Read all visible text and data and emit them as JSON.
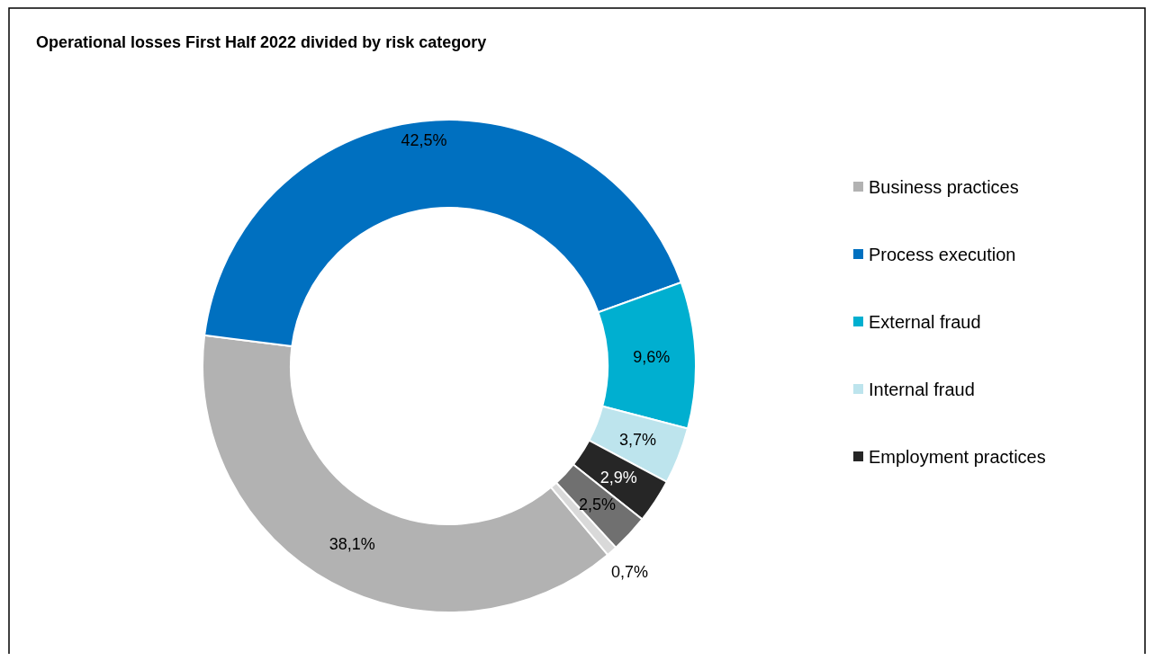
{
  "chart_data": {
    "type": "donut",
    "title": "Operational losses First Half 2022 divided by risk category",
    "categories": [
      "Business practices",
      "Process execution",
      "External fraud",
      "Internal fraud",
      "Employment practices",
      null,
      null
    ],
    "values": [
      38.1,
      42.5,
      9.6,
      3.7,
      2.9,
      2.5,
      0.7
    ],
    "colors": [
      "#b2b2b2",
      "#0070c0",
      "#00afd0",
      "#bde4ed",
      "#262626",
      "#707070",
      "#d9d9d9"
    ],
    "value_labels": [
      "38,1%",
      "42,5%",
      "9,6%",
      "3,7%",
      "2,9%",
      "2,5%",
      "0,7%"
    ],
    "legend": "right"
  }
}
